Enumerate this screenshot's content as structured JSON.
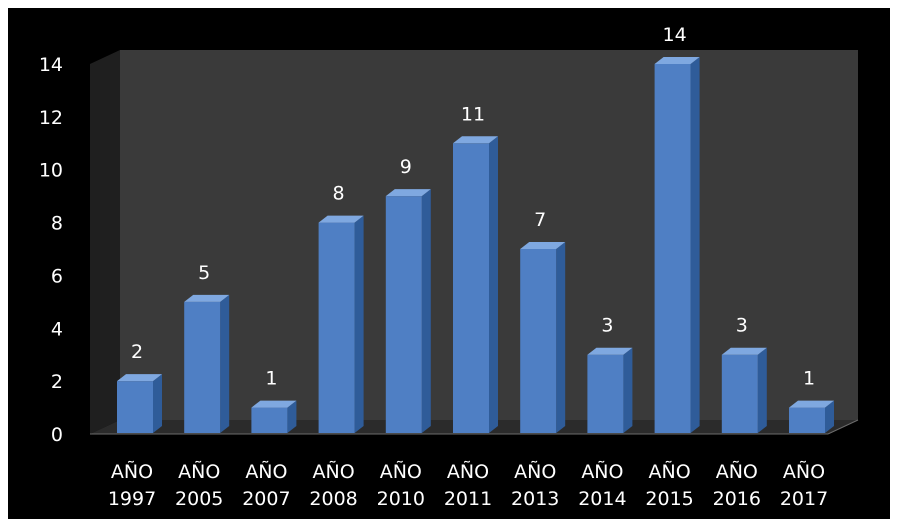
{
  "chart_data": {
    "type": "bar",
    "categories": [
      [
        "AÑO",
        "1997"
      ],
      [
        "AÑO",
        "2005"
      ],
      [
        "AÑO",
        "2007"
      ],
      [
        "AÑO",
        "2008"
      ],
      [
        "AÑO",
        "2010"
      ],
      [
        "AÑO",
        "2011"
      ],
      [
        "AÑO",
        "2013"
      ],
      [
        "AÑO",
        "2014"
      ],
      [
        "AÑO",
        "2015"
      ],
      [
        "AÑO",
        "2016"
      ],
      [
        "AÑO",
        "2017"
      ]
    ],
    "values": [
      2,
      5,
      1,
      8,
      9,
      11,
      7,
      3,
      14,
      3,
      1
    ],
    "data_labels": [
      "2",
      "5",
      "1",
      "8",
      "9",
      "11",
      "7",
      "3",
      "14",
      "3",
      "1"
    ],
    "y_ticks": [
      "0",
      "2",
      "4",
      "6",
      "8",
      "10",
      "12",
      "14"
    ],
    "ylim": [
      0,
      14
    ],
    "grid": false,
    "legend": "none",
    "style": "3d-column",
    "colors": {
      "background": "#000000",
      "plot_wall": "#3a3a3a",
      "floor": "#2b2b2b",
      "bar_front": "#4f7fc4",
      "bar_side": "#2f5c99",
      "bar_top": "#7fa8e0",
      "text": "#ffffff"
    }
  }
}
